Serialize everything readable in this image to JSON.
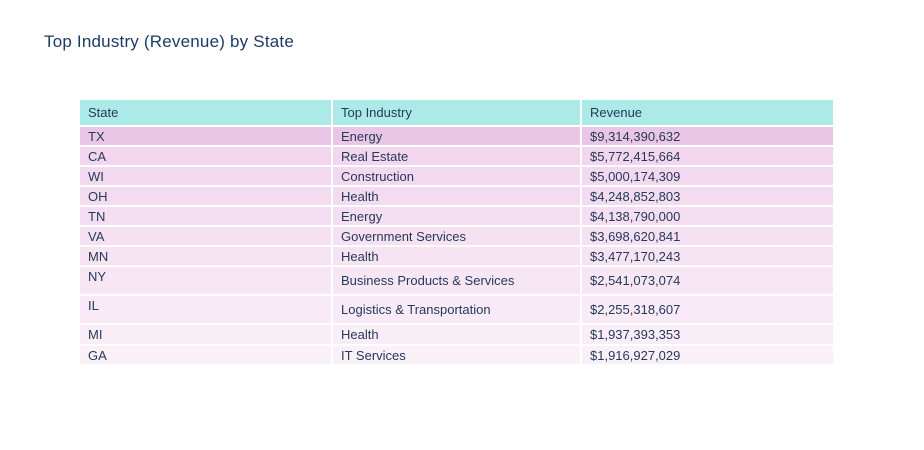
{
  "title": "Top Industry (Revenue) by State",
  "colors": {
    "page_bg": "#ffffff",
    "header_bg": "#abeae6",
    "title_text": "#1d3b63",
    "cell_text": "#26395a",
    "row_bg": [
      "#e9c6e5",
      "#f2d6ee",
      "#f3d9ef",
      "#f4dcf0",
      "#f4def1",
      "#f5e1f2",
      "#f6e4f3",
      "#f7e7f4",
      "#f8eaf6",
      "#f9eef7",
      "#faf1f8"
    ]
  },
  "table": {
    "columns": [
      "State",
      "Top Industry",
      "Revenue"
    ],
    "rows": [
      {
        "state": "TX",
        "industry": "Energy",
        "revenue": "$9,314,390,632"
      },
      {
        "state": "CA",
        "industry": "Real Estate",
        "revenue": "$5,772,415,664"
      },
      {
        "state": "WI",
        "industry": "Construction",
        "revenue": "$5,000,174,309"
      },
      {
        "state": "OH",
        "industry": "Health",
        "revenue": "$4,248,852,803"
      },
      {
        "state": "TN",
        "industry": "Energy",
        "revenue": "$4,138,790,000"
      },
      {
        "state": "VA",
        "industry": "Government Services",
        "revenue": "$3,698,620,841"
      },
      {
        "state": "MN",
        "industry": "Health",
        "revenue": "$3,477,170,243"
      },
      {
        "state": "NY",
        "industry": "Business Products & Services",
        "revenue": "$2,541,073,074"
      },
      {
        "state": "IL",
        "industry": "Logistics & Transportation",
        "revenue": "$2,255,318,607"
      },
      {
        "state": "MI",
        "industry": "Health",
        "revenue": "$1,937,393,353"
      },
      {
        "state": "GA",
        "industry": "IT Services",
        "revenue": "$1,916,927,029"
      }
    ]
  },
  "chart_data": {
    "type": "table",
    "title": "Top Industry (Revenue) by State",
    "columns": [
      "State",
      "Top Industry",
      "Revenue"
    ],
    "rows": [
      [
        "TX",
        "Energy",
        9314390632
      ],
      [
        "CA",
        "Real Estate",
        5772415664
      ],
      [
        "WI",
        "Construction",
        5000174309
      ],
      [
        "OH",
        "Health",
        4248852803
      ],
      [
        "TN",
        "Energy",
        4138790000
      ],
      [
        "VA",
        "Government Services",
        3698620841
      ],
      [
        "MN",
        "Health",
        3477170243
      ],
      [
        "NY",
        "Business Products & Services",
        2541073074
      ],
      [
        "IL",
        "Logistics & Transportation",
        2255318607
      ],
      [
        "MI",
        "Health",
        1937393353
      ],
      [
        "GA",
        "IT Services",
        1916927029
      ]
    ],
    "sort": "descending by Revenue",
    "conditional_formatting": "row background fades from dark pink (highest revenue) to near-white (lowest revenue)",
    "header_style": "light teal background"
  }
}
